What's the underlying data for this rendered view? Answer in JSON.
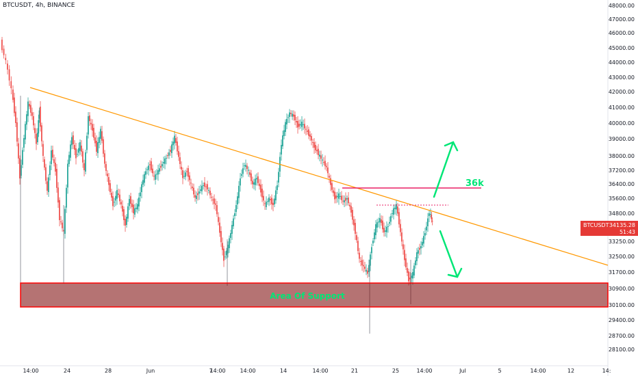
{
  "header": {
    "symbol": "BTCUSDT, 4h, BINANCE"
  },
  "chart_data": {
    "type": "candlestick",
    "symbol": "BTCUSDT",
    "interval": "4h",
    "exchange": "BINANCE",
    "price_ticks": [
      "48000.00",
      "47000.00",
      "46000.00",
      "45000.00",
      "44000.00",
      "43000.00",
      "42000.00",
      "41000.00",
      "40000.00",
      "39000.00",
      "38000.00",
      "37200.00",
      "36400.00",
      "35600.00",
      "34800.00",
      "34000.00",
      "33250.00",
      "32500.00",
      "31700.00",
      "30900.00",
      "30100.00",
      "29400.00",
      "28700.00",
      "28100.00"
    ],
    "time_ticks": [
      "14:00",
      "24",
      "28",
      "Jun",
      "14:00",
      "7",
      "14:00",
      "14",
      "14:00",
      "21",
      "25",
      "14:00",
      "Jul",
      "5",
      "14:00",
      "12",
      "14:"
    ],
    "last_price": {
      "symbol": "BTCUSDT",
      "value": "34135.28",
      "countdown": "51:43"
    },
    "annotations": {
      "resistance_label": "36k",
      "support_label": "Area Of Support"
    },
    "colors": {
      "up": "#26a69a",
      "down": "#ef5350",
      "trendline": "#ff9800",
      "support": "#ff0000",
      "arrow": "#00e676",
      "resistance": "#e91e63"
    }
  }
}
